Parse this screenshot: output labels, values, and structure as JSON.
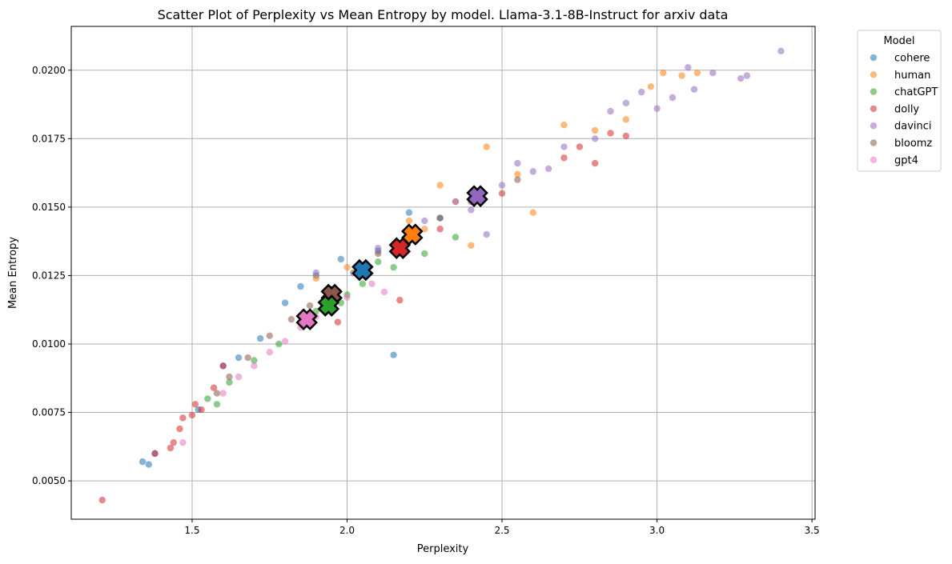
{
  "chart_data": {
    "type": "scatter",
    "title": "Scatter Plot of Perplexity vs Mean Entropy by model. Llama-3.1-8B-Instruct for arxiv data",
    "xlabel": "Perplexity",
    "ylabel": "Mean Entropy",
    "xlim": [
      1.11,
      3.51
    ],
    "ylim": [
      0.0036,
      0.0216
    ],
    "xticks": [
      1.5,
      2.0,
      2.5,
      3.0,
      3.5
    ],
    "xtick_labels": [
      "1.5",
      "2.0",
      "2.5",
      "3.0",
      "3.5"
    ],
    "yticks": [
      0.005,
      0.0075,
      0.01,
      0.0125,
      0.015,
      0.0175,
      0.02
    ],
    "ytick_labels": [
      "0.0050",
      "0.0075",
      "0.0100",
      "0.0125",
      "0.0150",
      "0.0175",
      "0.0200"
    ],
    "grid": true,
    "legend": {
      "title": "Model",
      "placement": "outside-top-right"
    },
    "series": [
      {
        "name": "cohere",
        "color": "#1f77b4",
        "points": [
          [
            1.34,
            0.0057
          ],
          [
            1.36,
            0.0056
          ],
          [
            1.38,
            0.006
          ],
          [
            1.52,
            0.0076
          ],
          [
            1.6,
            0.0092
          ],
          [
            1.65,
            0.0095
          ],
          [
            1.72,
            0.0102
          ],
          [
            1.8,
            0.0115
          ],
          [
            1.85,
            0.0121
          ],
          [
            1.9,
            0.0125
          ],
          [
            1.98,
            0.0131
          ],
          [
            2.15,
            0.0096
          ],
          [
            2.2,
            0.0148
          ],
          [
            2.05,
            0.0128
          ],
          [
            2.1,
            0.0134
          ],
          [
            1.95,
            0.0118
          ],
          [
            2.3,
            0.0146
          ]
        ],
        "mean": [
          2.05,
          0.0127
        ]
      },
      {
        "name": "human",
        "color": "#ff7f0e",
        "points": [
          [
            1.9,
            0.0124
          ],
          [
            2.0,
            0.0128
          ],
          [
            2.2,
            0.0145
          ],
          [
            2.3,
            0.0158
          ],
          [
            2.4,
            0.0136
          ],
          [
            2.55,
            0.0162
          ],
          [
            2.6,
            0.0148
          ],
          [
            2.7,
            0.018
          ],
          [
            2.8,
            0.0178
          ],
          [
            2.9,
            0.0182
          ],
          [
            2.98,
            0.0194
          ],
          [
            3.02,
            0.0199
          ],
          [
            3.08,
            0.0198
          ],
          [
            3.13,
            0.0199
          ],
          [
            2.45,
            0.0172
          ],
          [
            2.35,
            0.0152
          ],
          [
            2.25,
            0.0142
          ]
        ],
        "mean": [
          2.21,
          0.014
        ]
      },
      {
        "name": "chatGPT",
        "color": "#2ca02c",
        "points": [
          [
            1.55,
            0.008
          ],
          [
            1.58,
            0.0078
          ],
          [
            1.62,
            0.0086
          ],
          [
            1.7,
            0.0094
          ],
          [
            1.78,
            0.01
          ],
          [
            1.85,
            0.0108
          ],
          [
            1.9,
            0.0112
          ],
          [
            2.0,
            0.0118
          ],
          [
            2.1,
            0.013
          ],
          [
            2.15,
            0.0128
          ],
          [
            2.25,
            0.0133
          ],
          [
            2.35,
            0.0139
          ],
          [
            1.98,
            0.0115
          ],
          [
            2.05,
            0.0122
          ]
        ],
        "mean": [
          1.94,
          0.0114
        ]
      },
      {
        "name": "dolly",
        "color": "#d62728",
        "points": [
          [
            1.21,
            0.0043
          ],
          [
            1.38,
            0.006
          ],
          [
            1.43,
            0.0062
          ],
          [
            1.44,
            0.0064
          ],
          [
            1.46,
            0.0069
          ],
          [
            1.47,
            0.0073
          ],
          [
            1.5,
            0.0074
          ],
          [
            1.51,
            0.0078
          ],
          [
            1.53,
            0.0076
          ],
          [
            1.57,
            0.0084
          ],
          [
            1.6,
            0.0092
          ],
          [
            1.97,
            0.0108
          ],
          [
            2.17,
            0.0116
          ],
          [
            2.3,
            0.0142
          ],
          [
            2.5,
            0.0155
          ],
          [
            2.7,
            0.0168
          ],
          [
            2.8,
            0.0166
          ],
          [
            2.85,
            0.0177
          ],
          [
            2.9,
            0.0176
          ],
          [
            2.75,
            0.0172
          ]
        ],
        "mean": [
          2.17,
          0.0135
        ]
      },
      {
        "name": "davinci",
        "color": "#9467bd",
        "points": [
          [
            1.9,
            0.0126
          ],
          [
            2.1,
            0.0135
          ],
          [
            2.25,
            0.0145
          ],
          [
            2.35,
            0.0152
          ],
          [
            2.45,
            0.014
          ],
          [
            2.5,
            0.0158
          ],
          [
            2.6,
            0.0163
          ],
          [
            2.7,
            0.0172
          ],
          [
            2.8,
            0.0175
          ],
          [
            2.85,
            0.0185
          ],
          [
            2.9,
            0.0188
          ],
          [
            2.95,
            0.0192
          ],
          [
            3.0,
            0.0186
          ],
          [
            3.05,
            0.019
          ],
          [
            3.1,
            0.0201
          ],
          [
            3.12,
            0.0193
          ],
          [
            3.18,
            0.0199
          ],
          [
            3.27,
            0.0197
          ],
          [
            3.29,
            0.0198
          ],
          [
            3.4,
            0.0207
          ],
          [
            2.65,
            0.0164
          ],
          [
            2.55,
            0.0166
          ],
          [
            2.4,
            0.0149
          ]
        ],
        "mean": [
          2.42,
          0.0154
        ]
      },
      {
        "name": "bloomz",
        "color": "#8c564b",
        "points": [
          [
            1.58,
            0.0082
          ],
          [
            1.62,
            0.0088
          ],
          [
            1.68,
            0.0095
          ],
          [
            1.75,
            0.0103
          ],
          [
            1.82,
            0.0109
          ],
          [
            1.88,
            0.0114
          ],
          [
            1.95,
            0.012
          ],
          [
            2.02,
            0.0126
          ],
          [
            2.1,
            0.0133
          ],
          [
            2.2,
            0.0139
          ],
          [
            2.3,
            0.0146
          ],
          [
            2.4,
            0.0152
          ],
          [
            2.55,
            0.016
          ]
        ],
        "mean": [
          1.95,
          0.0118
        ]
      },
      {
        "name": "gpt4",
        "color": "#e377c2",
        "points": [
          [
            1.47,
            0.0064
          ],
          [
            1.6,
            0.0082
          ],
          [
            1.65,
            0.0088
          ],
          [
            1.7,
            0.0092
          ],
          [
            1.75,
            0.0097
          ],
          [
            1.8,
            0.0101
          ],
          [
            1.85,
            0.0106
          ],
          [
            1.9,
            0.011
          ],
          [
            1.95,
            0.0113
          ],
          [
            2.0,
            0.0117
          ],
          [
            2.08,
            0.0122
          ],
          [
            2.12,
            0.0119
          ]
        ],
        "mean": [
          1.87,
          0.0109
        ]
      }
    ]
  }
}
